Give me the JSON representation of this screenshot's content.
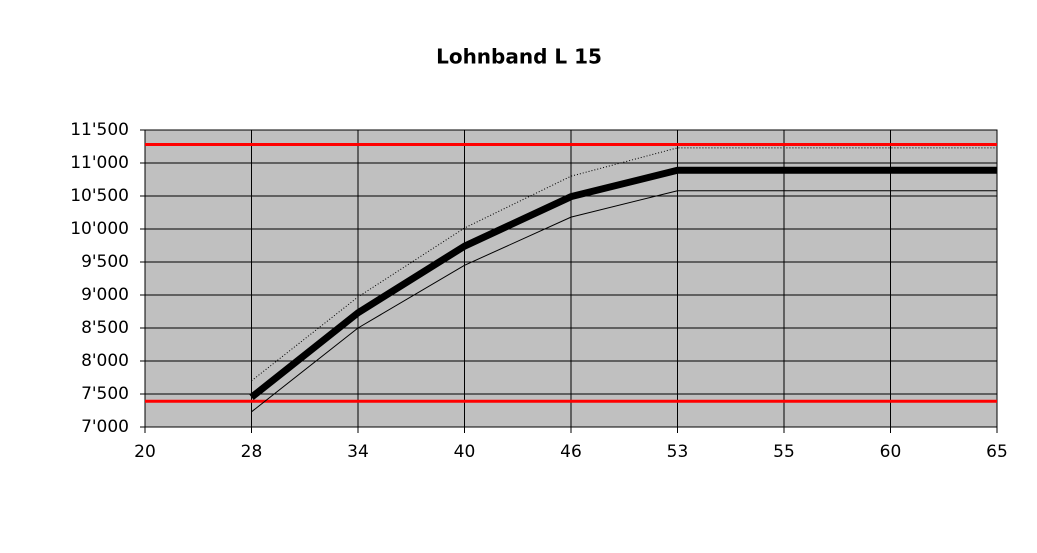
{
  "chart_data": {
    "type": "line",
    "title": "Lohnband L 15",
    "categories": [
      "20",
      "28",
      "34",
      "40",
      "46",
      "53",
      "55",
      "60",
      "65"
    ],
    "series": [
      {
        "color": "#ff0000",
        "style": "thin",
        "values": [
          11280,
          11280,
          11280,
          11280,
          11280,
          11280,
          11280,
          11280,
          11280
        ]
      },
      {
        "color": "#ff0000",
        "style": "thin",
        "values": [
          7390,
          7390,
          7390,
          7390,
          7390,
          7390,
          7390,
          7390,
          7390
        ]
      },
      {
        "color": "#000000",
        "style": "dotted",
        "values": [
          null,
          7700,
          8970,
          10015,
          10800,
          11230,
          11230,
          11230,
          11230
        ]
      },
      {
        "color": "#000000",
        "style": "hairline",
        "values": [
          null,
          7230,
          8500,
          9450,
          10180,
          10580,
          10580,
          10580,
          10580
        ]
      },
      {
        "color": "#000000",
        "style": "thick",
        "values": [
          null,
          7450,
          8730,
          9740,
          10490,
          10890,
          10890,
          10890,
          10890
        ]
      }
    ],
    "ylim": [
      7000,
      11500
    ],
    "yticks": [
      {
        "value": 7000,
        "label": "7'000"
      },
      {
        "value": 7500,
        "label": "7'500"
      },
      {
        "value": 8000,
        "label": "8'000"
      },
      {
        "value": 8500,
        "label": "8'500"
      },
      {
        "value": 9000,
        "label": "9'000"
      },
      {
        "value": 9500,
        "label": "9'500"
      },
      {
        "value": 10000,
        "label": "10'000"
      },
      {
        "value": 10500,
        "label": "10'500"
      },
      {
        "value": 11000,
        "label": "11'000"
      },
      {
        "value": 11500,
        "label": "11'500"
      }
    ],
    "grid": true,
    "background": "#c0c0c0"
  }
}
